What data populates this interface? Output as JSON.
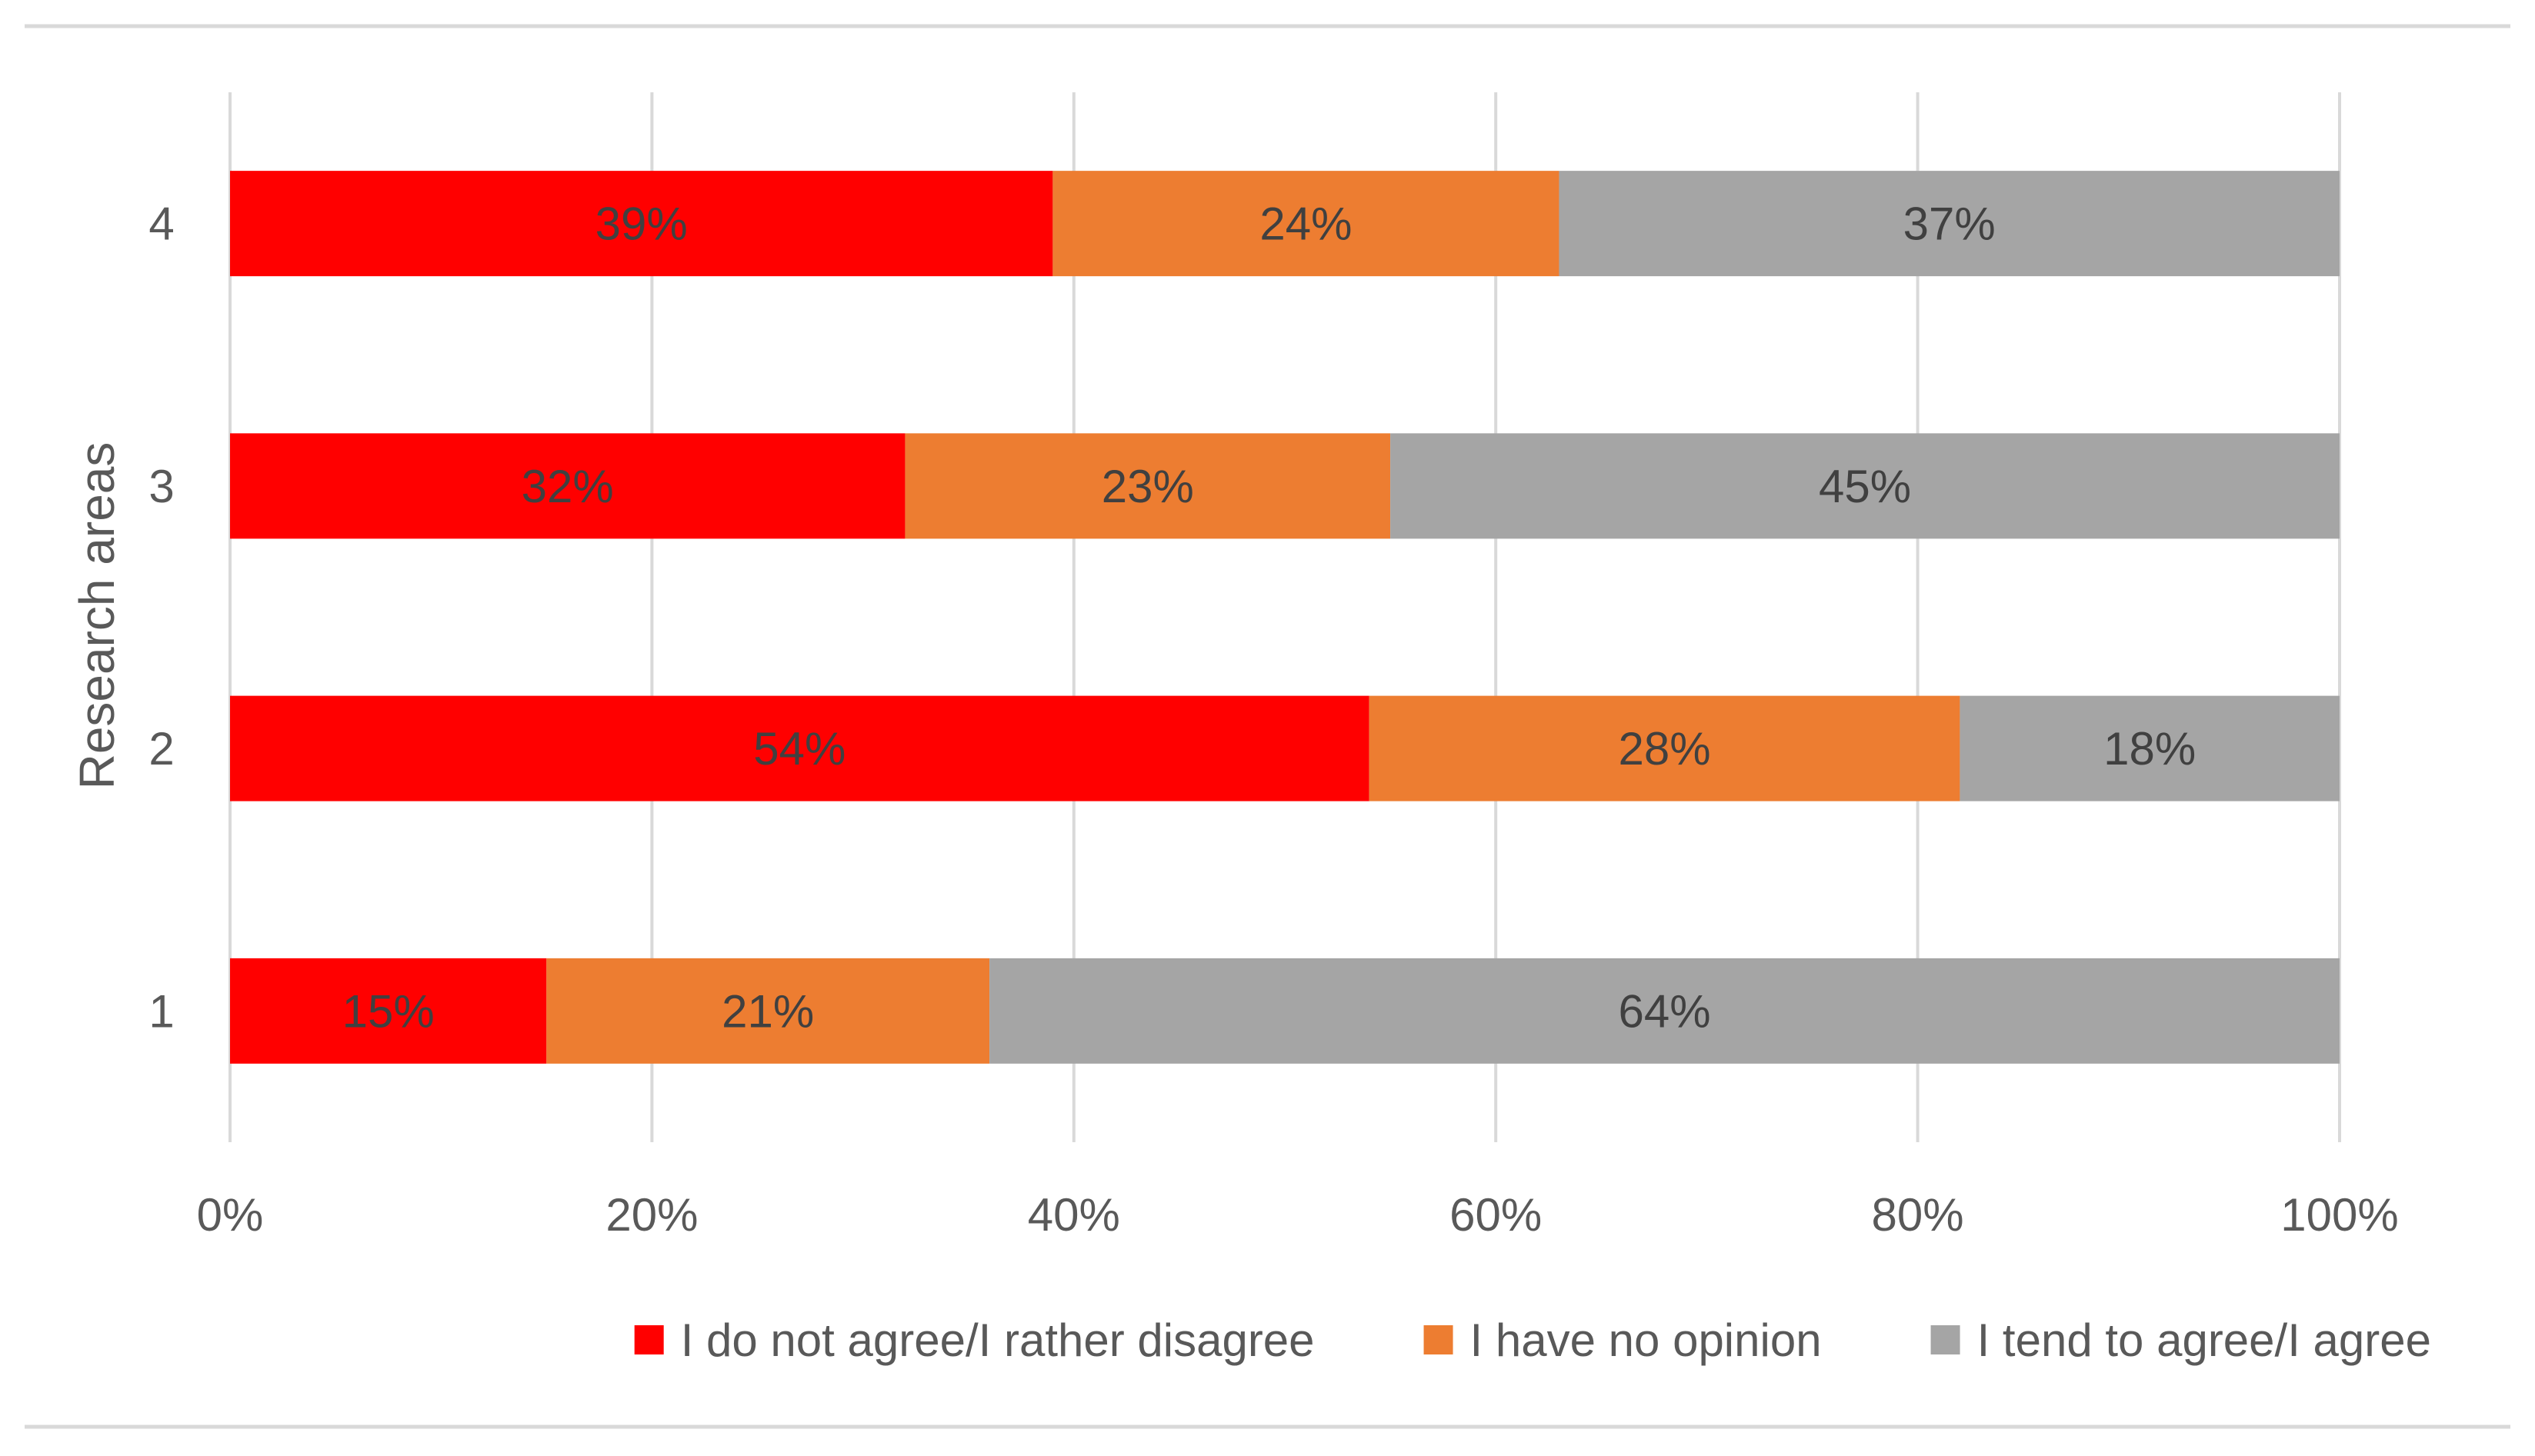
{
  "chart_data": {
    "type": "bar",
    "orientation": "horizontal",
    "stacked": true,
    "title": "",
    "xlabel": "",
    "ylabel": "Research areas",
    "xlim": [
      0,
      100
    ],
    "x_ticks": [
      0,
      20,
      40,
      60,
      80,
      100
    ],
    "x_tick_labels": [
      "0%",
      "20%",
      "40%",
      "60%",
      "80%",
      "100%"
    ],
    "categories": [
      "1",
      "2",
      "3",
      "4"
    ],
    "series": [
      {
        "name": "I do not agree/I rather disagree",
        "values": [
          15,
          54,
          32,
          39
        ],
        "labels": [
          "15%",
          "54%",
          "32%",
          "39%"
        ],
        "color": "#ff0000"
      },
      {
        "name": "I have no opinion",
        "values": [
          21,
          28,
          23,
          24
        ],
        "labels": [
          "21%",
          "28%",
          "23%",
          "24%"
        ],
        "color": "#ed7d31"
      },
      {
        "name": "I tend to agree/I agree",
        "values": [
          64,
          18,
          45,
          37
        ],
        "labels": [
          "64%",
          "18%",
          "45%",
          "37%"
        ],
        "color": "#a5a5a5"
      }
    ],
    "grid": {
      "vertical": true,
      "color": "#d9d9d9"
    },
    "legend": {
      "position": "bottom-right"
    },
    "data_label_color": "#404040",
    "axis_text_color": "#595959"
  }
}
